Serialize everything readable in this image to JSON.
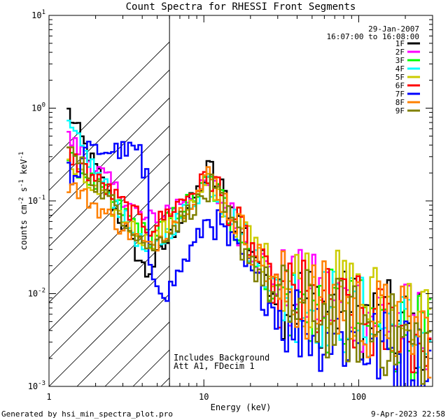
{
  "chart_data": {
    "type": "line",
    "title": "Count Spectra for RHESSI Front Segments",
    "xlabel": "Energy (keV)",
    "ylabel_parts": {
      "a": "counts cm",
      "b": "-2",
      "c": " s",
      "d": "-1",
      "e": " keV",
      "f": "-1"
    },
    "xscale": "log",
    "yscale": "log",
    "xlim": [
      1,
      300
    ],
    "ylim": [
      0.001,
      10
    ],
    "xticks": [
      {
        "v": 1,
        "label": "1"
      },
      {
        "v": 10,
        "label": "10"
      },
      {
        "v": 100,
        "label": "100"
      }
    ],
    "yticks": [
      {
        "v": 10,
        "b": "10",
        "e": "1"
      },
      {
        "v": 1,
        "b": "10",
        "e": "0"
      },
      {
        "v": 0.1,
        "b": "10",
        "e": "-1"
      },
      {
        "v": 0.01,
        "b": "10",
        "e": "-2"
      },
      {
        "v": 0.001,
        "b": "10",
        "e": "-3"
      }
    ],
    "hatched_region_x": [
      1,
      6
    ],
    "date": "29-Jan-2007",
    "time_range": "16:07:00 to 16:08:00",
    "annotations": [
      "Includes Background",
      "Att A1, FDecim 1"
    ],
    "series": [
      {
        "name": "1F",
        "color": "#000000",
        "lowE": 1.0,
        "ln": 0.016,
        "lnE": 4.3,
        "pk": 0.21,
        "bump": 0.0,
        "tail": 0.05,
        "tailF": 0.0035
      },
      {
        "name": "2F",
        "color": "#ff00ff",
        "lowE": 0.5,
        "ln": 0.06,
        "lnE": 4.2,
        "pk": 0.15,
        "bump": 0.0,
        "tail": 0.06,
        "tailF": 0.004
      },
      {
        "name": "3F",
        "color": "#00ff00",
        "lowE": 0.3,
        "ln": 0.04,
        "lnE": 4.5,
        "pk": 0.16,
        "bump": 0.0,
        "tail": 0.045,
        "tailF": 0.003
      },
      {
        "name": "4F",
        "color": "#00ffff",
        "lowE": 0.68,
        "ln": 0.025,
        "lnE": 4.4,
        "pk": 0.17,
        "bump": 0.0,
        "tail": 0.05,
        "tailF": 0.0032
      },
      {
        "name": "5F",
        "color": "#cccc00",
        "lowE": 0.25,
        "ln": 0.035,
        "lnE": 4.4,
        "pk": 0.14,
        "bump": 0.0,
        "tail": 0.08,
        "tailF": 0.005
      },
      {
        "name": "6F",
        "color": "#ff0000",
        "lowE": 0.33,
        "ln": 0.05,
        "lnE": 4.5,
        "pk": 0.19,
        "bump": 0.0,
        "tail": 0.05,
        "tailF": 0.003
      },
      {
        "name": "7F",
        "color": "#0000ff",
        "lowE": 0.22,
        "ln": 0.01,
        "lnE": 5.8,
        "pk": 0.07,
        "bump": 0.35,
        "tail": 0.03,
        "tailF": 0.0016
      },
      {
        "name": "8F",
        "color": "#ff8000",
        "lowE": 0.16,
        "ln": 0.03,
        "lnE": 4.5,
        "pk": 0.18,
        "bump": 0.0,
        "tail": 0.055,
        "tailF": 0.0035
      },
      {
        "name": "9F",
        "color": "#808000",
        "lowE": 0.38,
        "ln": 0.03,
        "lnE": 4.5,
        "pk": 0.13,
        "bump": 0.0,
        "tail": 0.04,
        "tailF": 0.0026
      }
    ]
  },
  "footer": {
    "generated_by": "Generated by hsi_min_spectra_plot.pro",
    "timestamp": "9-Apr-2023 22:58"
  }
}
